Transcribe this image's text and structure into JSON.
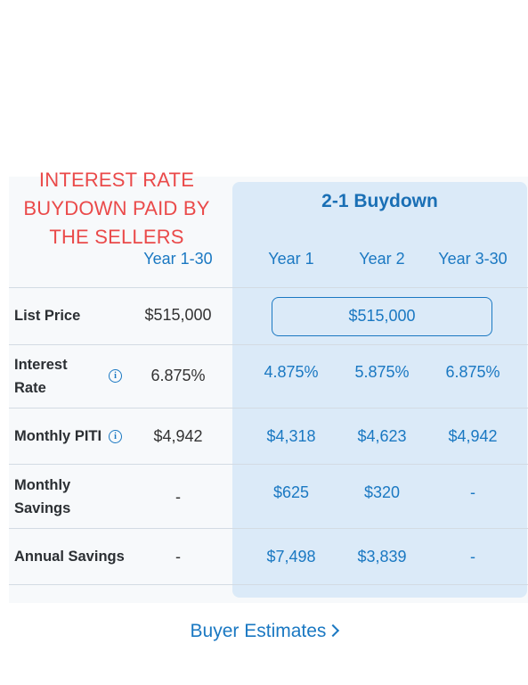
{
  "overlay": {
    "line1": "INTEREST RATE",
    "line2": "BUYDOWN PAID BY",
    "line3": "THE SELLERS"
  },
  "buydown_title": "2-1 Buydown",
  "columns": {
    "base": "Year 1-30",
    "y1": "Year 1",
    "y2": "Year 2",
    "y3": "Year 3-30"
  },
  "rows": {
    "list_price": {
      "label": "List Price",
      "base": "$515,000",
      "buydown": "$515,000"
    },
    "interest_rate": {
      "label_line1": "Interest",
      "label_line2": "Rate",
      "base": "6.875%",
      "y1": "4.875%",
      "y2": "5.875%",
      "y3": "6.875%"
    },
    "monthly_piti": {
      "label": "Monthly PITI",
      "base": "$4,942",
      "y1": "$4,318",
      "y2": "$4,623",
      "y3": "$4,942"
    },
    "monthly_savings": {
      "label_line1": "Monthly",
      "label_line2": "Savings",
      "base": "-",
      "y1": "$625",
      "y2": "$320",
      "y3": "-"
    },
    "annual_savings": {
      "label": "Annual Savings",
      "base": "-",
      "y1": "$7,498",
      "y2": "$3,839",
      "y3": "-"
    }
  },
  "info_icon_glyph": "i",
  "buyer_estimates_link": "Buyer Estimates",
  "colors": {
    "accent": "#1a78c2",
    "overlay_red": "#ea4a4a",
    "buydown_bg": "#dbeaf8"
  }
}
